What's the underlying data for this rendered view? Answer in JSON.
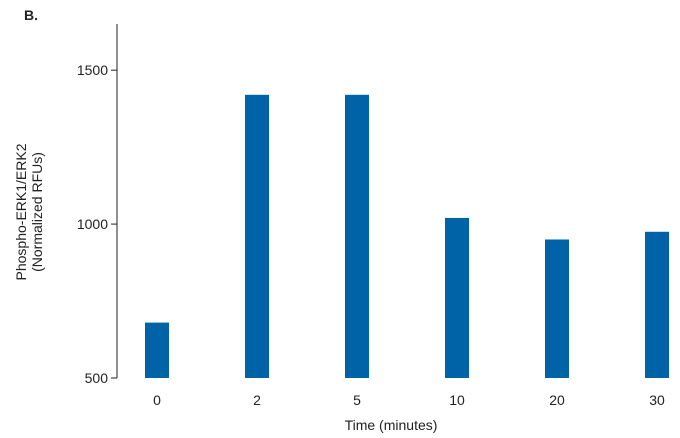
{
  "panel_label": "B.",
  "chart_data": {
    "type": "bar",
    "categories": [
      "0",
      "2",
      "5",
      "10",
      "20",
      "30"
    ],
    "values": [
      680,
      1420,
      1420,
      1020,
      950,
      975
    ],
    "xlabel": "Time (minutes)",
    "ylabel_line1": "Phospho-ERK1/ERK2",
    "ylabel_line2": "(Normalized RFUs)",
    "ylim": [
      500,
      1650
    ],
    "yticks": [
      500,
      1000,
      1500
    ],
    "ytick_labels": [
      "500",
      "1000",
      "1500"
    ],
    "bar_color": "#0063a8",
    "grid": false,
    "legend": "none"
  }
}
